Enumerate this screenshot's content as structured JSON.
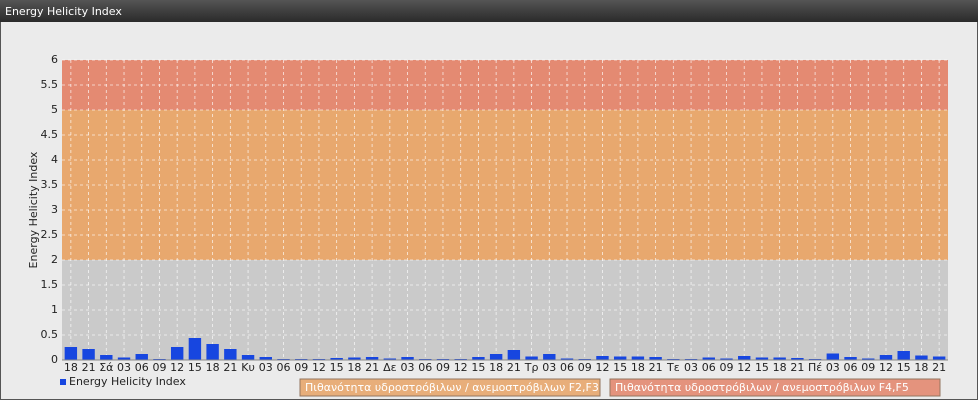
{
  "chart_data": {
    "type": "bar",
    "title": "Energy Helicity Index",
    "ylabel": "Energy Helicity Index",
    "categories": [
      "18",
      "21",
      "Σά",
      "03",
      "06",
      "09",
      "12",
      "15",
      "18",
      "21",
      "Κυ",
      "03",
      "06",
      "09",
      "12",
      "15",
      "18",
      "21",
      "Δε",
      "03",
      "06",
      "09",
      "12",
      "15",
      "18",
      "21",
      "Τρ",
      "03",
      "06",
      "09",
      "12",
      "15",
      "18",
      "21",
      "Τε",
      "03",
      "06",
      "09",
      "12",
      "15",
      "18",
      "21",
      "Πέ",
      "03",
      "06",
      "09",
      "12",
      "15",
      "18",
      "21"
    ],
    "series": [
      {
        "name": "Energy Helicity Index",
        "color": "#1746e0",
        "values": [
          0.26,
          0.22,
          0.1,
          0.05,
          0.12,
          0.02,
          0.26,
          0.44,
          0.32,
          0.22,
          0.1,
          0.06,
          0.02,
          0.02,
          0.02,
          0.04,
          0.05,
          0.06,
          0.03,
          0.06,
          0.02,
          0.02,
          0.02,
          0.06,
          0.12,
          0.2,
          0.07,
          0.12,
          0.03,
          0.02,
          0.08,
          0.07,
          0.07,
          0.06,
          0.02,
          0.02,
          0.05,
          0.03,
          0.08,
          0.05,
          0.05,
          0.04,
          0.02,
          0.13,
          0.06,
          0.03,
          0.1,
          0.18,
          0.09,
          0.07
        ]
      }
    ],
    "bands": [
      {
        "label": "Πιθανότητα υδροστρόβιλων / ανεμοστρόβιλων F2,F3",
        "from": 2,
        "to": 5,
        "color": "#e8a86e"
      },
      {
        "label": "Πιθανότητα υδροστρόβιλων / ανεμοστρόβιλων F4,F5",
        "from": 5,
        "to": 6,
        "color": "#e48a72"
      }
    ],
    "ylim": [
      0,
      6
    ],
    "yticks": [
      0,
      0.5,
      1,
      1.5,
      2,
      2.5,
      3,
      3.5,
      4,
      4.5,
      5,
      5.5,
      6
    ],
    "grid": true
  }
}
